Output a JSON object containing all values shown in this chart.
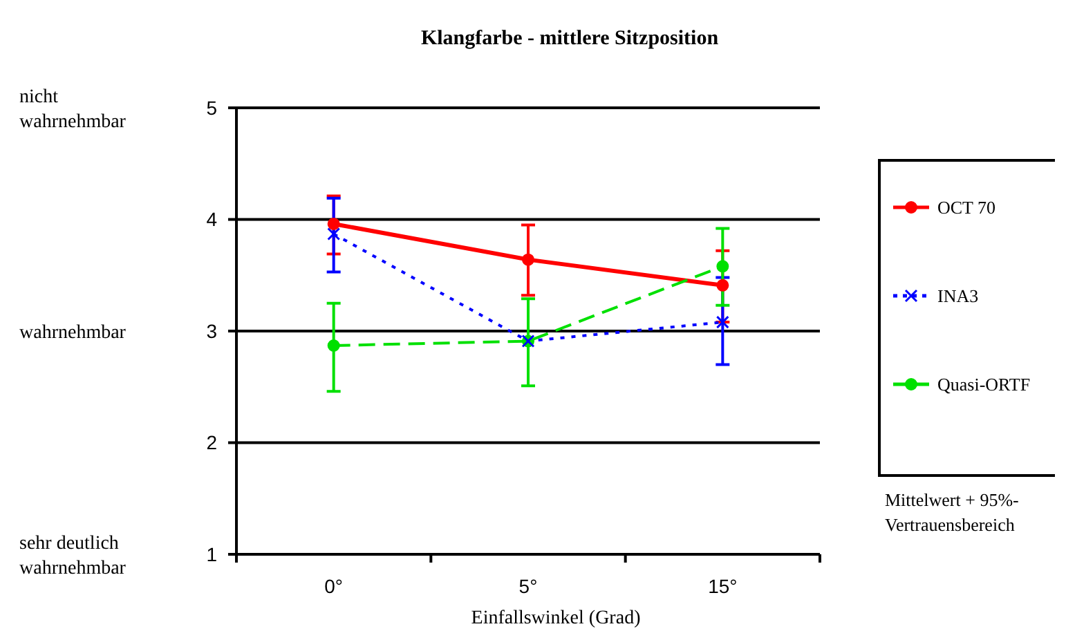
{
  "chart_data": {
    "type": "line",
    "title": "Klangfarbe - mittlere Sitzposition",
    "xlabel": "Einfallswinkel (Grad)",
    "categories": [
      "0°",
      "5°",
      "15°"
    ],
    "ylim": [
      1,
      5
    ],
    "yticks": [
      1,
      2,
      3,
      4,
      5
    ],
    "grid": "y",
    "legend": "right",
    "series": [
      {
        "name": "OCT 70",
        "color": "#ff0000",
        "values": [
          3.96,
          3.64,
          3.41
        ],
        "errors": [
          [
            3.69,
            4.21
          ],
          [
            3.32,
            3.95
          ],
          [
            3.08,
            3.72
          ]
        ],
        "marker": "circle",
        "line_style": "solid"
      },
      {
        "name": "INA3",
        "color": "#0000ff",
        "values": [
          3.87,
          2.91,
          3.08
        ],
        "errors": [
          [
            3.53,
            4.19
          ],
          null,
          [
            2.7,
            3.48
          ]
        ],
        "marker": "cross",
        "line_style": "dotted"
      },
      {
        "name": "Quasi-ORTF",
        "color": "#00e000",
        "values": [
          2.87,
          2.91,
          3.58
        ],
        "errors": [
          [
            2.46,
            3.25
          ],
          [
            2.51,
            3.29
          ],
          [
            3.23,
            3.92
          ]
        ],
        "marker": "circle",
        "line_style": "dashed"
      }
    ],
    "annotations": [
      "nicht wahrnehmbar",
      "wahrnehmbar",
      "sehr deutlich wahrnehmbar",
      "Mittelwert + 95%-Vertrauensbereich"
    ]
  }
}
